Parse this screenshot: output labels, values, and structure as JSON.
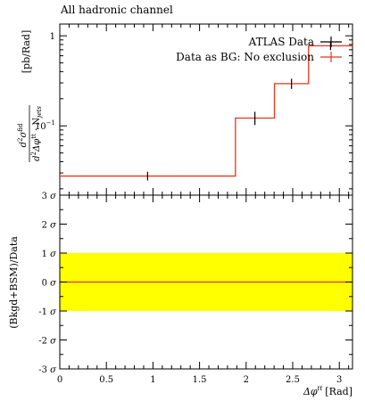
{
  "title": "All hadronic channel",
  "colors": {
    "data": "#000000",
    "prediction": "#e8341c",
    "band": "#ffff00"
  },
  "chart_data": [
    {
      "type": "line",
      "title": "All hadronic channel",
      "xlabel": "",
      "ylabel_parts": [
        "d",
        "2",
        "σ",
        "fid",
        "d",
        "2",
        "Δφ",
        "tt",
        " · N",
        "jets",
        "[pb/Rad]"
      ],
      "xlim": [
        0,
        3.1416
      ],
      "ylim": [
        0.017,
        1.35
      ],
      "yscale": "log",
      "yticks": [
        {
          "v": 0.1,
          "label": "10",
          "sup": "−1"
        },
        {
          "v": 1,
          "label": "1",
          "sup": ""
        }
      ],
      "bin_edges": [
        0,
        1.885,
        2.304,
        2.67,
        3.1416
      ],
      "series": [
        {
          "name": "ATLAS Data",
          "style": "points",
          "x": [
            0.942,
            2.094,
            2.487,
            2.906
          ],
          "y": [
            0.0277,
            0.122,
            0.294,
            0.775
          ],
          "err": [
            0.0018,
            0.015,
            0.025,
            0.05
          ]
        },
        {
          "name": "Data as BG: No exclusion",
          "style": "histogram",
          "values": [
            0.0277,
            0.122,
            0.294,
            0.775
          ]
        }
      ],
      "legend": "top-right"
    },
    {
      "type": "area",
      "xlabel": "Δφ",
      "xlabel_sup": "tt",
      "xlabel_unit": "[Rad]",
      "ylabel": "(Bkgd+BSM)/Data",
      "xlim": [
        0,
        3.1416
      ],
      "ylim": [
        -3,
        3
      ],
      "xticks": [
        "0",
        "0.5",
        "1",
        "1.5",
        "2",
        "2.5",
        "3"
      ],
      "yticks": [
        "-3",
        "-2",
        "-1",
        "0",
        "1",
        "2",
        "3"
      ],
      "ytick_unit": "σ",
      "band": [
        -1,
        1
      ],
      "line": 0
    }
  ]
}
